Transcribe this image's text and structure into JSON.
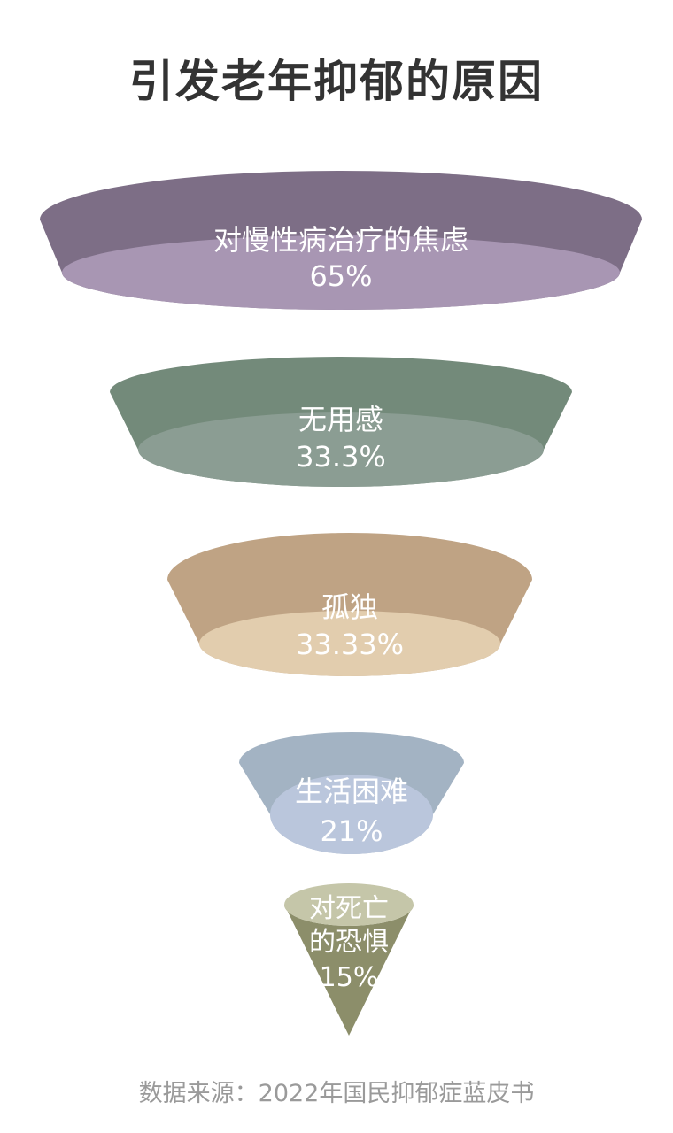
{
  "chart_data": {
    "type": "funnel",
    "title": "引发老年抑郁的原因",
    "source": "数据来源：2022年国民抑郁症蓝皮书",
    "stages": [
      {
        "label_lines": [
          "对慢性病治疗的焦虑"
        ],
        "value_label": "65%",
        "value": 65,
        "top_color": "#7d6e86",
        "rim_color": "#a896b3"
      },
      {
        "label_lines": [
          "无用感"
        ],
        "value_label": "33.3%",
        "value": 33.3,
        "top_color": "#738a7a",
        "rim_color": "#8b9d93"
      },
      {
        "label_lines": [
          "孤独"
        ],
        "value_label": "33.33%",
        "value": 33.33,
        "top_color": "#bfa384",
        "rim_color": "#e2cdae"
      },
      {
        "label_lines": [
          "生活困难"
        ],
        "value_label": "21%",
        "value": 21,
        "top_color": "#a3b3c3",
        "rim_color": "#bac6dc"
      },
      {
        "label_lines": [
          "对死亡",
          "的恐惧"
        ],
        "value_label": "15%",
        "value": 15,
        "top_color": "#8c8e6a",
        "rim_color": "#c5c6a9"
      }
    ]
  }
}
